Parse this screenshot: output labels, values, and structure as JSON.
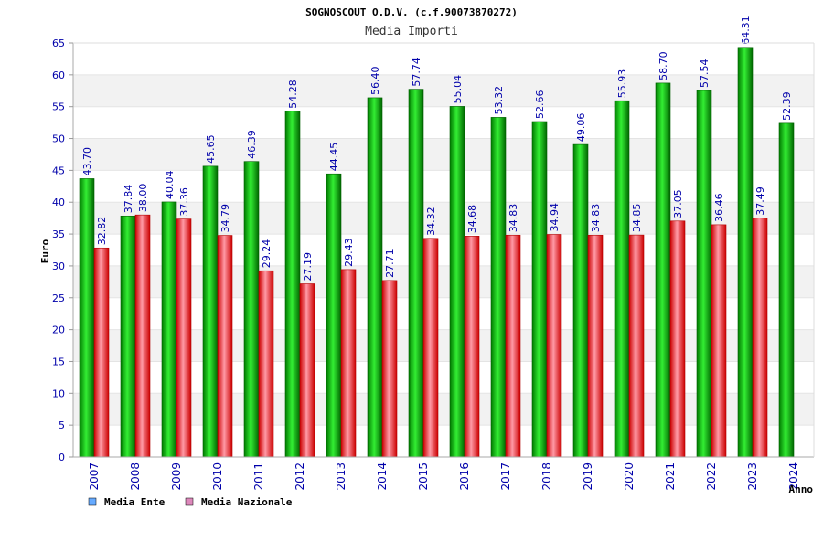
{
  "chart_data": {
    "type": "bar",
    "title": "SOGNOSCOUT O.D.V. (c.f.90073870272)",
    "subtitle": "Media Importi",
    "xlabel": "Anno",
    "ylabel": "Euro",
    "ylim": [
      0,
      65
    ],
    "yticks": [
      0,
      5,
      10,
      15,
      20,
      25,
      30,
      35,
      40,
      45,
      50,
      55,
      60,
      65
    ],
    "grid": "horizontal alternating bands",
    "legend_position": "bottom-left",
    "categories": [
      "2007",
      "2008",
      "2009",
      "2010",
      "2011",
      "2012",
      "2013",
      "2014",
      "2015",
      "2016",
      "2017",
      "2018",
      "2019",
      "2020",
      "2021",
      "2022",
      "2023",
      "2024"
    ],
    "series": [
      {
        "name": "Media Ente",
        "color": "#00b000",
        "legend_color": "#66aaff",
        "values": [
          43.7,
          37.84,
          40.04,
          45.65,
          46.39,
          54.28,
          44.45,
          56.4,
          57.74,
          55.04,
          53.32,
          52.66,
          49.06,
          55.93,
          58.7,
          57.54,
          64.31,
          52.39
        ],
        "labels": [
          "43.70",
          "37.84",
          "40.04",
          "45.65",
          "46.39",
          "54.28",
          "44.45",
          "56.40",
          "57.74",
          "55.04",
          "53.32",
          "52.66",
          "49.06",
          "55.93",
          "58.70",
          "57.54",
          "64.31",
          "52.39"
        ]
      },
      {
        "name": "Media Nazionale",
        "color": "#e00000",
        "legend_color": "#dd88bb",
        "values": [
          32.82,
          38.0,
          37.36,
          34.79,
          29.24,
          27.19,
          29.43,
          27.71,
          34.32,
          34.68,
          34.83,
          34.94,
          34.83,
          34.85,
          37.05,
          36.46,
          37.49,
          null
        ],
        "labels": [
          "32.82",
          "38.00",
          "37.36",
          "34.79",
          "29.24",
          "27.19",
          "29.43",
          "27.71",
          "34.32",
          "34.68",
          "34.83",
          "34.94",
          "34.83",
          "34.85",
          "37.05",
          "36.46",
          "37.49",
          ""
        ]
      }
    ]
  }
}
